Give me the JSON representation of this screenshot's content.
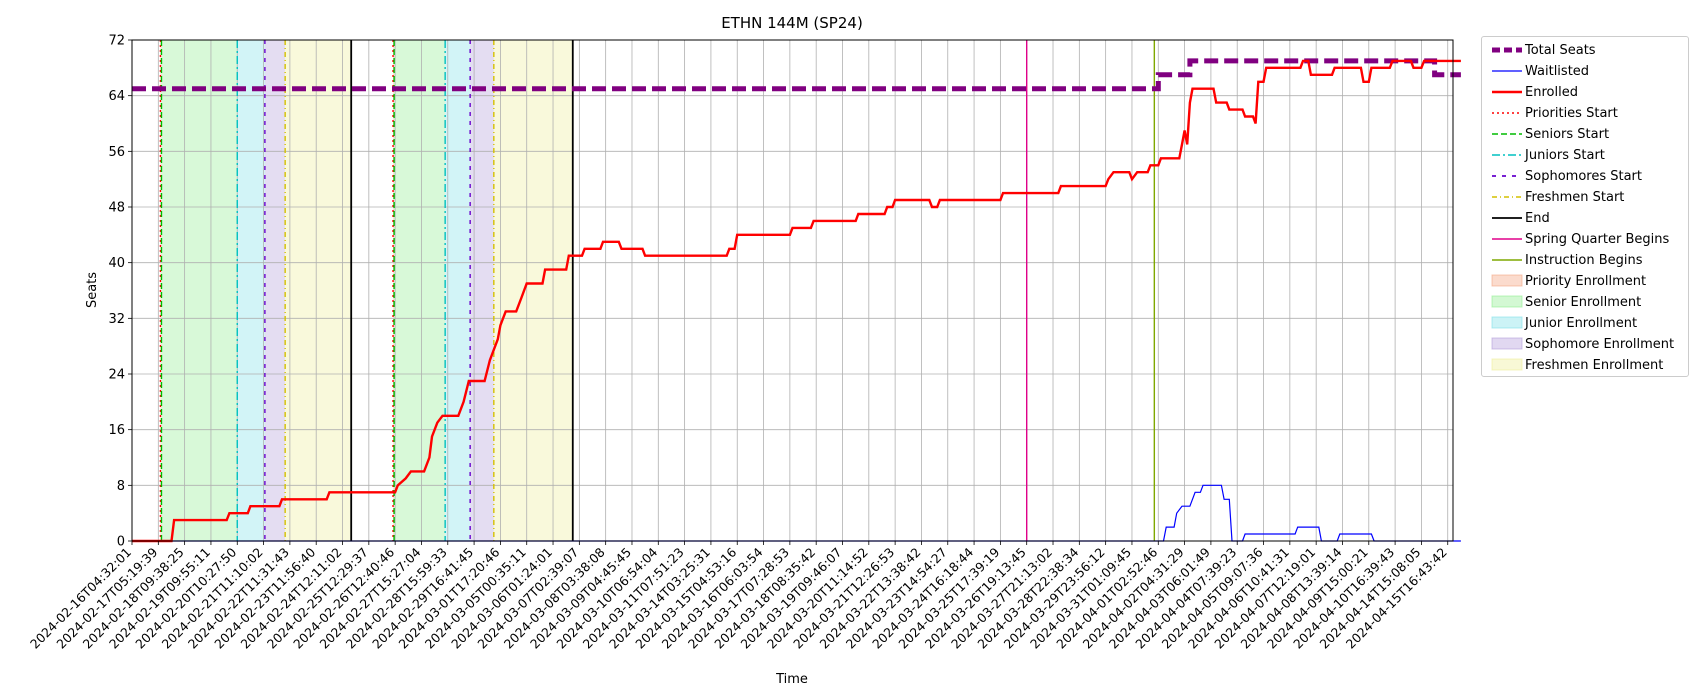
{
  "chart_data": {
    "type": "line",
    "title": "ETHN 144M (SP24)",
    "xlabel": "Time",
    "ylabel": "Seats",
    "ylim": [
      0,
      72
    ],
    "y_ticks": [
      0,
      8,
      16,
      24,
      32,
      40,
      48,
      56,
      64,
      72
    ],
    "xlim": [
      "2024-02-16T04:32:01",
      "2024-04-16T09:00:00"
    ],
    "x_ticks": [
      "2024-02-16T04:32:01",
      "2024-02-17T05:19:39",
      "2024-02-18T09:38:25",
      "2024-02-19T09:55:11",
      "2024-02-20T10:27:50",
      "2024-02-21T11:10:02",
      "2024-02-22T11:31:43",
      "2024-02-23T11:56:40",
      "2024-02-24T12:11:02",
      "2024-02-25T12:29:37",
      "2024-02-26T12:40:46",
      "2024-02-27T15:27:04",
      "2024-02-28T15:59:33",
      "2024-02-29T16:41:45",
      "2024-03-01T17:20:46",
      "2024-03-05T00:35:11",
      "2024-03-06T01:24:01",
      "2024-03-07T02:39:07",
      "2024-03-08T03:38:08",
      "2024-03-09T04:45:45",
      "2024-03-10T06:54:04",
      "2024-03-11T07:51:23",
      "2024-03-14T03:25:31",
      "2024-03-15T04:53:16",
      "2024-03-16T06:03:54",
      "2024-03-17T07:28:53",
      "2024-03-18T08:35:42",
      "2024-03-19T09:46:07",
      "2024-03-20T11:14:52",
      "2024-03-21T12:26:53",
      "2024-03-22T13:38:42",
      "2024-03-23T14:54:27",
      "2024-03-24T16:18:44",
      "2024-03-25T17:39:19",
      "2024-03-26T19:13:45",
      "2024-03-27T21:13:02",
      "2024-03-28T22:38:34",
      "2024-03-29T23:56:12",
      "2024-03-31T01:09:45",
      "2024-04-01T02:52:46",
      "2024-04-02T04:31:29",
      "2024-04-03T06:01:49",
      "2024-04-04T07:39:23",
      "2024-04-05T09:07:36",
      "2024-04-06T10:41:31",
      "2024-04-07T12:19:01",
      "2024-04-08T13:39:14",
      "2024-04-09T15:00:21",
      "2024-04-10T16:39:43",
      "2024-04-14T15:08:05",
      "2024-04-15T16:43:42"
    ],
    "grid": true,
    "legend_placement": "outside upper right",
    "series": [
      {
        "name": "Total Seats",
        "color": "#800080",
        "style": "dashed-thick",
        "points": [
          [
            0,
            65
          ],
          [
            39.0,
            65
          ],
          [
            39.0,
            67
          ],
          [
            40.2,
            67
          ],
          [
            40.2,
            69
          ],
          [
            49.5,
            69
          ],
          [
            49.5,
            67
          ],
          [
            50.5,
            67
          ]
        ]
      },
      {
        "name": "Waitlisted",
        "color": "#0000ff",
        "style": "solid-thin",
        "points": [
          [
            0,
            0
          ],
          [
            39.2,
            0
          ],
          [
            39.3,
            2
          ],
          [
            39.6,
            2
          ],
          [
            39.7,
            4
          ],
          [
            39.9,
            5
          ],
          [
            40.2,
            5
          ],
          [
            40.4,
            7
          ],
          [
            40.6,
            7
          ],
          [
            40.7,
            8
          ],
          [
            41.4,
            8
          ],
          [
            41.5,
            6
          ],
          [
            41.7,
            6
          ],
          [
            41.8,
            0
          ],
          [
            42.2,
            0
          ],
          [
            42.3,
            1
          ],
          [
            44.2,
            1
          ],
          [
            44.3,
            2
          ],
          [
            45.1,
            2
          ],
          [
            45.2,
            0
          ],
          [
            45.8,
            0
          ],
          [
            45.9,
            1
          ],
          [
            47.1,
            1
          ],
          [
            47.2,
            0
          ],
          [
            50.5,
            0
          ]
        ]
      },
      {
        "name": "Enrolled",
        "color": "#ff0000",
        "style": "solid-thick",
        "points": [
          [
            0,
            0
          ],
          [
            1.5,
            0
          ],
          [
            1.6,
            3
          ],
          [
            3.6,
            3
          ],
          [
            3.7,
            4
          ],
          [
            4.4,
            4
          ],
          [
            4.5,
            5
          ],
          [
            5.6,
            5
          ],
          [
            5.7,
            6
          ],
          [
            7.4,
            6
          ],
          [
            7.5,
            7
          ],
          [
            10.0,
            7
          ],
          [
            10.1,
            8
          ],
          [
            10.4,
            9
          ],
          [
            10.6,
            10
          ],
          [
            11.1,
            10
          ],
          [
            11.3,
            12
          ],
          [
            11.4,
            15
          ],
          [
            11.6,
            17
          ],
          [
            11.8,
            18
          ],
          [
            12.4,
            18
          ],
          [
            12.6,
            20
          ],
          [
            12.8,
            23
          ],
          [
            13.4,
            23
          ],
          [
            13.6,
            26
          ],
          [
            13.9,
            29
          ],
          [
            14.0,
            31
          ],
          [
            14.2,
            33
          ],
          [
            14.6,
            33
          ],
          [
            14.8,
            35
          ],
          [
            15.0,
            37
          ],
          [
            15.6,
            37
          ],
          [
            15.7,
            39
          ],
          [
            16.5,
            39
          ],
          [
            16.6,
            41
          ],
          [
            17.1,
            41
          ],
          [
            17.2,
            42
          ],
          [
            17.8,
            42
          ],
          [
            17.9,
            43
          ],
          [
            18.5,
            43
          ],
          [
            18.6,
            42
          ],
          [
            19.4,
            42
          ],
          [
            19.5,
            41
          ],
          [
            22.6,
            41
          ],
          [
            22.7,
            42
          ],
          [
            22.9,
            42
          ],
          [
            23.0,
            44
          ],
          [
            25.0,
            44
          ],
          [
            25.1,
            45
          ],
          [
            25.8,
            45
          ],
          [
            25.9,
            46
          ],
          [
            27.5,
            46
          ],
          [
            27.6,
            47
          ],
          [
            28.6,
            47
          ],
          [
            28.7,
            48
          ],
          [
            28.9,
            48
          ],
          [
            29.0,
            49
          ],
          [
            30.3,
            49
          ],
          [
            30.4,
            48
          ],
          [
            30.6,
            48
          ],
          [
            30.7,
            49
          ],
          [
            33.0,
            49
          ],
          [
            33.1,
            50
          ],
          [
            35.2,
            50
          ],
          [
            35.3,
            51
          ],
          [
            37.0,
            51
          ],
          [
            37.1,
            52
          ],
          [
            37.3,
            53
          ],
          [
            37.9,
            53
          ],
          [
            38.0,
            52
          ],
          [
            38.2,
            53
          ],
          [
            38.6,
            53
          ],
          [
            38.7,
            54
          ],
          [
            39.0,
            54
          ],
          [
            39.1,
            55
          ],
          [
            39.8,
            55
          ],
          [
            39.9,
            57
          ],
          [
            40.0,
            59
          ],
          [
            40.1,
            57
          ],
          [
            40.2,
            63
          ],
          [
            40.3,
            65
          ],
          [
            41.1,
            65
          ],
          [
            41.2,
            63
          ],
          [
            41.6,
            63
          ],
          [
            41.7,
            62
          ],
          [
            42.2,
            62
          ],
          [
            42.3,
            61
          ],
          [
            42.6,
            61
          ],
          [
            42.7,
            60
          ],
          [
            42.8,
            66
          ],
          [
            43.0,
            66
          ],
          [
            43.1,
            68
          ],
          [
            44.4,
            68
          ],
          [
            44.5,
            69
          ],
          [
            44.7,
            69
          ],
          [
            44.8,
            67
          ],
          [
            45.6,
            67
          ],
          [
            45.7,
            68
          ],
          [
            46.7,
            68
          ],
          [
            46.8,
            66
          ],
          [
            47.0,
            66
          ],
          [
            47.1,
            68
          ],
          [
            47.8,
            68
          ],
          [
            47.9,
            69
          ],
          [
            48.6,
            69
          ],
          [
            48.7,
            68
          ],
          [
            49.0,
            68
          ],
          [
            49.1,
            69
          ],
          [
            50.5,
            69
          ]
        ]
      }
    ],
    "vertical_markers": [
      {
        "name": "Priorities Start",
        "color": "#ff0000",
        "dash": "2,3",
        "x": [
          1.08,
          9.92
        ]
      },
      {
        "name": "Seniors Start",
        "color": "#00bb00",
        "dash": "6,3",
        "x": [
          1.12,
          9.96
        ]
      },
      {
        "name": "Juniors Start",
        "color": "#00c0c0",
        "dash": "8,3,2,3",
        "x": [
          4.0,
          11.9
        ]
      },
      {
        "name": "Sophomores Start",
        "color": "#6600cc",
        "dash": "4,5",
        "x": [
          5.05,
          12.85
        ]
      },
      {
        "name": "Freshmen Start",
        "color": "#d4c000",
        "dash": "5,3,1,3",
        "x": [
          5.82,
          13.75
        ]
      },
      {
        "name": "End",
        "color": "#000000",
        "dash": "",
        "x": [
          8.33,
          16.75
        ]
      },
      {
        "name": "Spring Quarter Begins",
        "color": "#e0008a",
        "dash": "",
        "x": [
          34.0
        ]
      },
      {
        "name": "Instruction Begins",
        "color": "#7fa800",
        "dash": "",
        "x": [
          38.85
        ]
      }
    ],
    "shaded_regions": [
      {
        "name": "Priority Enrollment",
        "color": "#f4a582",
        "spans": [
          [
            1.08,
            1.12
          ],
          [
            9.92,
            9.96
          ]
        ]
      },
      {
        "name": "Senior Enrollment",
        "color": "#90ee90",
        "spans": [
          [
            1.12,
            4.0
          ],
          [
            9.96,
            11.9
          ]
        ]
      },
      {
        "name": "Junior Enrollment",
        "color": "#7fe0e8",
        "spans": [
          [
            4.0,
            5.05
          ],
          [
            11.9,
            12.85
          ]
        ]
      },
      {
        "name": "Sophomore Enrollment",
        "color": "#b39ddb",
        "spans": [
          [
            5.05,
            5.82
          ],
          [
            12.85,
            13.75
          ]
        ]
      },
      {
        "name": "Freshmen Enrollment",
        "color": "#eeee99",
        "spans": [
          [
            5.82,
            8.33
          ],
          [
            13.75,
            16.75
          ]
        ]
      }
    ]
  },
  "legend": {
    "entries": [
      {
        "label": "Total Seats",
        "color": "#800080",
        "kind": "line",
        "width": 5,
        "dash": "8,4"
      },
      {
        "label": "Waitlisted",
        "color": "#0000ff",
        "kind": "line",
        "width": 1.2,
        "dash": ""
      },
      {
        "label": "Enrolled",
        "color": "#ff0000",
        "kind": "line",
        "width": 2.4,
        "dash": ""
      },
      {
        "label": "Priorities Start",
        "color": "#ff0000",
        "kind": "line",
        "width": 1.4,
        "dash": "2,3"
      },
      {
        "label": "Seniors Start",
        "color": "#00bb00",
        "kind": "line",
        "width": 1.4,
        "dash": "6,3"
      },
      {
        "label": "Juniors Start",
        "color": "#00c0c0",
        "kind": "line",
        "width": 1.4,
        "dash": "8,3,2,3"
      },
      {
        "label": "Sophomores Start",
        "color": "#6600cc",
        "kind": "line",
        "width": 1.8,
        "dash": "4,6"
      },
      {
        "label": "Freshmen Start",
        "color": "#d4c000",
        "kind": "line",
        "width": 1.4,
        "dash": "5,3,1,3"
      },
      {
        "label": "End",
        "color": "#000000",
        "kind": "line",
        "width": 1.8,
        "dash": ""
      },
      {
        "label": "Spring Quarter Begins",
        "color": "#e0008a",
        "kind": "line",
        "width": 1.6,
        "dash": ""
      },
      {
        "label": "Instruction Begins",
        "color": "#7fa800",
        "kind": "line",
        "width": 1.6,
        "dash": ""
      },
      {
        "label": "Priority Enrollment",
        "color": "#f4a582",
        "kind": "patch"
      },
      {
        "label": "Senior Enrollment",
        "color": "#90ee90",
        "kind": "patch"
      },
      {
        "label": "Junior Enrollment",
        "color": "#7fe0e8",
        "kind": "patch"
      },
      {
        "label": "Sophomore Enrollment",
        "color": "#b39ddb",
        "kind": "patch"
      },
      {
        "label": "Freshmen Enrollment",
        "color": "#eeee99",
        "kind": "patch"
      }
    ]
  }
}
